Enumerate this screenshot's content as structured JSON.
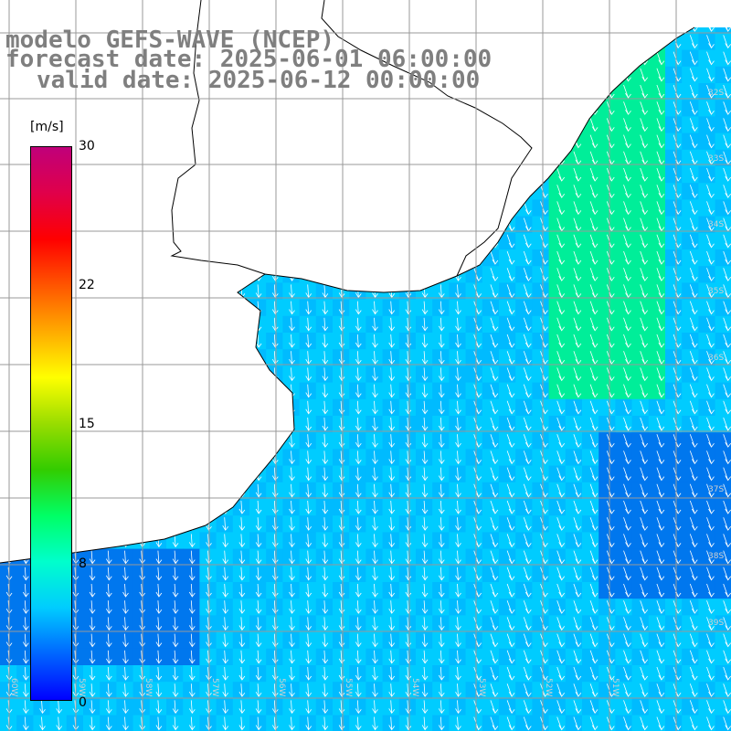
{
  "header": {
    "line1": "modelo GEFS-WAVE (NCEP)",
    "line2": "forecast date: 2025-06-01 06:00:00",
    "line3": "valid date: 2025-06-12 00:00:00"
  },
  "colorbar": {
    "unit": "[m/s]",
    "min": 0,
    "max": 30,
    "ticks": [
      "30",
      "22",
      "15",
      "8",
      "0"
    ],
    "gradient_colors": [
      "#0000ff",
      "#0066ff",
      "#00ccff",
      "#00ffcc",
      "#00ff66",
      "#33cc00",
      "#99dd00",
      "#ffff00",
      "#ffaa00",
      "#ff5500",
      "#ff0000",
      "#e0004a",
      "#c0007a"
    ]
  },
  "map": {
    "field": "wind speed (m/s) with direction arrows",
    "ocean_color_dominant": "#00ccff",
    "strong_wind_color": "#00ee99",
    "weak_wind_color": "#0077ee",
    "land_color": "#ffffff",
    "coastline_color": "#000000",
    "grid_color": "#999999",
    "arrow_color": "#ffffff",
    "lat_labels": [
      "32S",
      "33S",
      "34S",
      "35S",
      "36S",
      "37S",
      "38S",
      "39S"
    ],
    "lon_labels": [
      "60W",
      "59W",
      "58W",
      "57W",
      "56W",
      "55W",
      "54W",
      "53W",
      "52W",
      "51W"
    ]
  }
}
